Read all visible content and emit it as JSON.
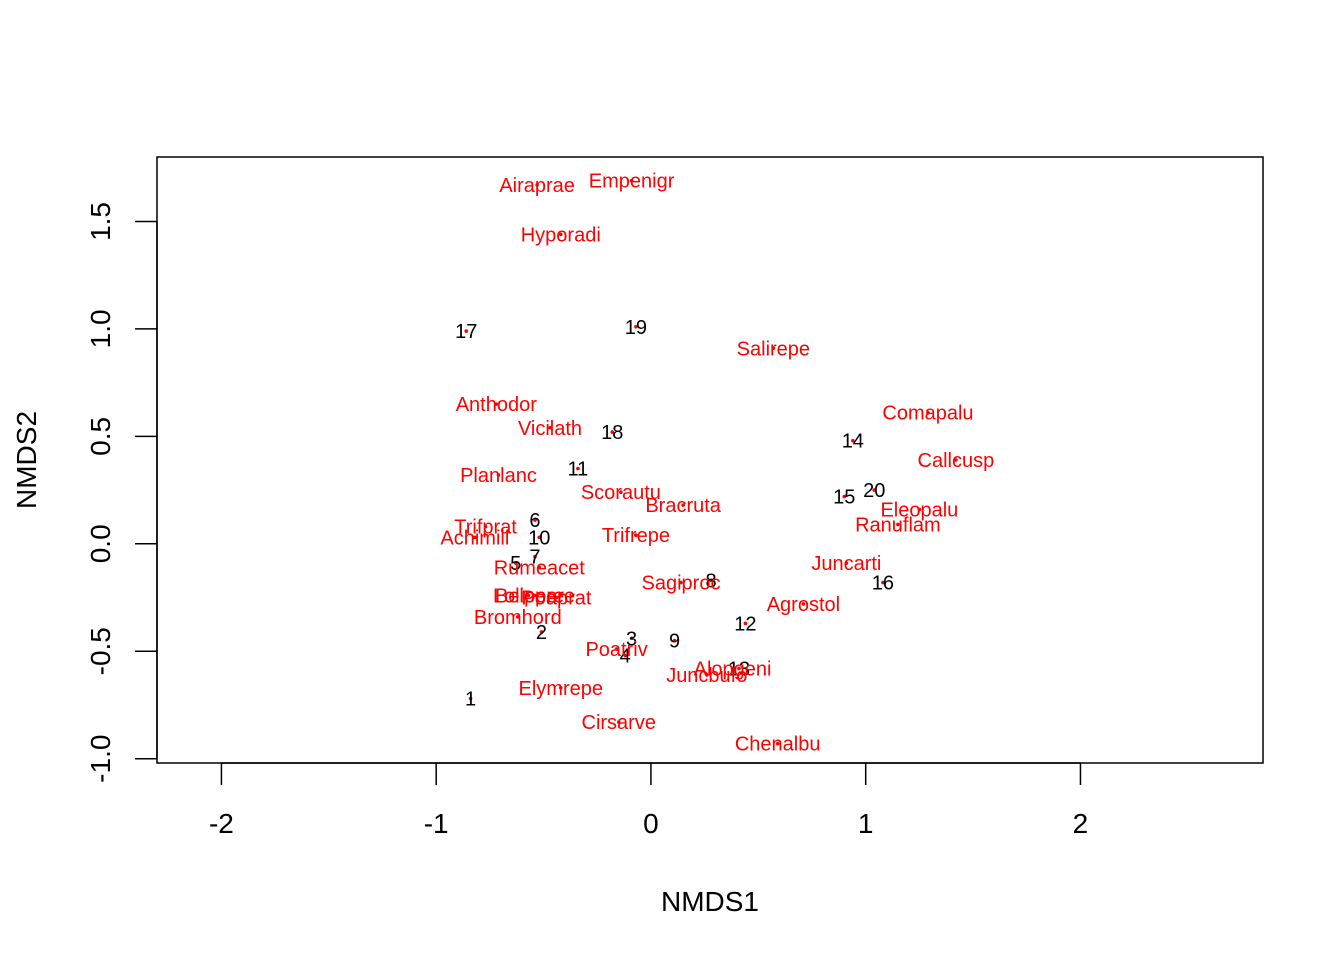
{
  "chart_data": {
    "type": "scatter",
    "title": "",
    "xlabel": "NMDS1",
    "ylabel": "NMDS2",
    "xlim": [
      -2.3,
      2.85
    ],
    "ylim": [
      -1.02,
      1.8
    ],
    "xticks": [
      -2,
      -1,
      0,
      1,
      2
    ],
    "yticks": [
      -1.0,
      -0.5,
      0.0,
      0.5,
      1.0,
      1.5
    ],
    "xtick_labels": [
      "-2",
      "-1",
      "0",
      "1",
      "2"
    ],
    "ytick_labels": [
      "-1.0",
      "-0.5",
      "0.0",
      "0.5",
      "1.0",
      "1.5"
    ],
    "grid": false,
    "colors": {
      "species": "#ff0000",
      "sites": "#000000",
      "axis": "#000000"
    },
    "series": [
      {
        "kind": "sites",
        "points": [
          {
            "label": "1",
            "x": -0.84,
            "y": -0.72
          },
          {
            "label": "2",
            "x": -0.51,
            "y": -0.41
          },
          {
            "label": "3",
            "x": -0.09,
            "y": -0.44
          },
          {
            "label": "4",
            "x": -0.12,
            "y": -0.52
          },
          {
            "label": "5",
            "x": -0.63,
            "y": -0.09
          },
          {
            "label": "6",
            "x": -0.54,
            "y": 0.11
          },
          {
            "label": "7",
            "x": -0.54,
            "y": -0.06
          },
          {
            "label": "8",
            "x": 0.28,
            "y": -0.17
          },
          {
            "label": "9",
            "x": 0.11,
            "y": -0.45
          },
          {
            "label": "10",
            "x": -0.52,
            "y": 0.03
          },
          {
            "label": "11",
            "x": -0.34,
            "y": 0.35
          },
          {
            "label": "12",
            "x": 0.44,
            "y": -0.37
          },
          {
            "label": "13",
            "x": 0.41,
            "y": -0.58
          },
          {
            "label": "14",
            "x": 0.94,
            "y": 0.48
          },
          {
            "label": "15",
            "x": 0.9,
            "y": 0.22
          },
          {
            "label": "16",
            "x": 1.08,
            "y": -0.18
          },
          {
            "label": "17",
            "x": -0.86,
            "y": 0.99
          },
          {
            "label": "18",
            "x": -0.18,
            "y": 0.52
          },
          {
            "label": "19",
            "x": -0.07,
            "y": 1.01
          },
          {
            "label": "20",
            "x": 1.04,
            "y": 0.25
          }
        ]
      },
      {
        "kind": "species",
        "points": [
          {
            "label": "Airaprae",
            "x": -0.53,
            "y": 1.67
          },
          {
            "label": "Empenigr",
            "x": -0.09,
            "y": 1.69
          },
          {
            "label": "Hyporadi",
            "x": -0.42,
            "y": 1.44
          },
          {
            "label": "Salirepe",
            "x": 0.57,
            "y": 0.91
          },
          {
            "label": "Anthodor",
            "x": -0.72,
            "y": 0.65
          },
          {
            "label": "Vicilath",
            "x": -0.47,
            "y": 0.54
          },
          {
            "label": "Comapalu",
            "x": 1.29,
            "y": 0.61
          },
          {
            "label": "Callcusp",
            "x": 1.42,
            "y": 0.39
          },
          {
            "label": "Planlanc",
            "x": -0.71,
            "y": 0.32
          },
          {
            "label": "Scorautu",
            "x": -0.14,
            "y": 0.24
          },
          {
            "label": "Bracruta",
            "x": 0.15,
            "y": 0.18
          },
          {
            "label": "Eleopalu",
            "x": 1.25,
            "y": 0.16
          },
          {
            "label": "Ranuflam",
            "x": 1.15,
            "y": 0.09
          },
          {
            "label": "Trifprat",
            "x": -0.77,
            "y": 0.08
          },
          {
            "label": "Achimill",
            "x": -0.82,
            "y": 0.03
          },
          {
            "label": "Trifrepe",
            "x": -0.07,
            "y": 0.04
          },
          {
            "label": "Juncarti",
            "x": 0.91,
            "y": -0.09
          },
          {
            "label": "Rumeacet",
            "x": -0.52,
            "y": -0.11
          },
          {
            "label": "Sagiproc",
            "x": 0.14,
            "y": -0.18
          },
          {
            "label": "Agrostol",
            "x": 0.71,
            "y": -0.28
          },
          {
            "label": "Lolipere",
            "x": -0.57,
            "y": -0.24
          },
          {
            "label": "Belopere",
            "x": -0.54,
            "y": -0.24
          },
          {
            "label": "Poaprat",
            "x": -0.44,
            "y": -0.25
          },
          {
            "label": "Bromhord",
            "x": -0.62,
            "y": -0.34
          },
          {
            "label": "Poatriv",
            "x": -0.16,
            "y": -0.49
          },
          {
            "label": "Alopgeni",
            "x": 0.38,
            "y": -0.58
          },
          {
            "label": "Juncbufo",
            "x": 0.26,
            "y": -0.61
          },
          {
            "label": "Elymrepe",
            "x": -0.42,
            "y": -0.67
          },
          {
            "label": "Cirsarve",
            "x": -0.15,
            "y": -0.83
          },
          {
            "label": "Chenalbu",
            "x": 0.59,
            "y": -0.93
          }
        ]
      }
    ]
  }
}
